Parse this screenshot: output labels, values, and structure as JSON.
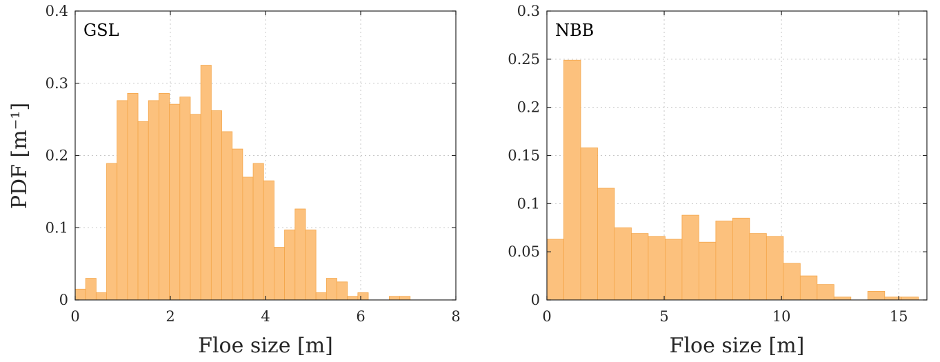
{
  "colors": {
    "bar_fill": "#fcc17d",
    "bar_edge": "#f4a64a",
    "axis": "#262626",
    "grid": "#c8c8c8"
  },
  "ylabel": "PDF [m⁻¹]",
  "chart_data": [
    {
      "type": "bar",
      "panel_label": "GSL",
      "xlabel": "Floe size [m]",
      "ylabel": "PDF [m⁻¹]",
      "xlim": [
        0,
        8
      ],
      "ylim": [
        0,
        0.4
      ],
      "xticks": [
        0,
        2,
        4,
        6,
        8
      ],
      "xtick_labels": [
        "0",
        "2",
        "4",
        "6",
        "8"
      ],
      "yticks": [
        0,
        0.1,
        0.2,
        0.3,
        0.4
      ],
      "ytick_labels": [
        "0",
        "0.1",
        "0.2",
        "0.3",
        "0.4"
      ],
      "grid": true,
      "bin_width": 0.22,
      "bin_edges_start": 0,
      "values": [
        0.015,
        0.03,
        0.01,
        0.189,
        0.276,
        0.286,
        0.247,
        0.276,
        0.286,
        0.271,
        0.281,
        0.257,
        0.325,
        0.262,
        0.233,
        0.209,
        0.17,
        0.189,
        0.165,
        0.073,
        0.097,
        0.126,
        0.097,
        0.01,
        0.03,
        0.025,
        0.005,
        0.01,
        0.0,
        0.0,
        0.005,
        0.005
      ]
    },
    {
      "type": "bar",
      "panel_label": "NBB",
      "xlabel": "Floe size [m]",
      "ylabel": "",
      "xlim": [
        0,
        16.2
      ],
      "ylim": [
        0,
        0.3
      ],
      "xticks": [
        0,
        5,
        10,
        15
      ],
      "xtick_labels": [
        "0",
        "5",
        "10",
        "15"
      ],
      "yticks": [
        0,
        0.05,
        0.1,
        0.15,
        0.2,
        0.25,
        0.3
      ],
      "ytick_labels": [
        "0",
        "0.05",
        "0.1",
        "0.15",
        "0.2",
        "0.25",
        "0.3"
      ],
      "grid": true,
      "bin_width": 0.72,
      "bin_edges_start": 0,
      "values": [
        0.063,
        0.249,
        0.158,
        0.116,
        0.075,
        0.069,
        0.066,
        0.063,
        0.088,
        0.06,
        0.082,
        0.085,
        0.069,
        0.066,
        0.038,
        0.025,
        0.016,
        0.003,
        0.0,
        0.009,
        0.003,
        0.003
      ]
    }
  ]
}
